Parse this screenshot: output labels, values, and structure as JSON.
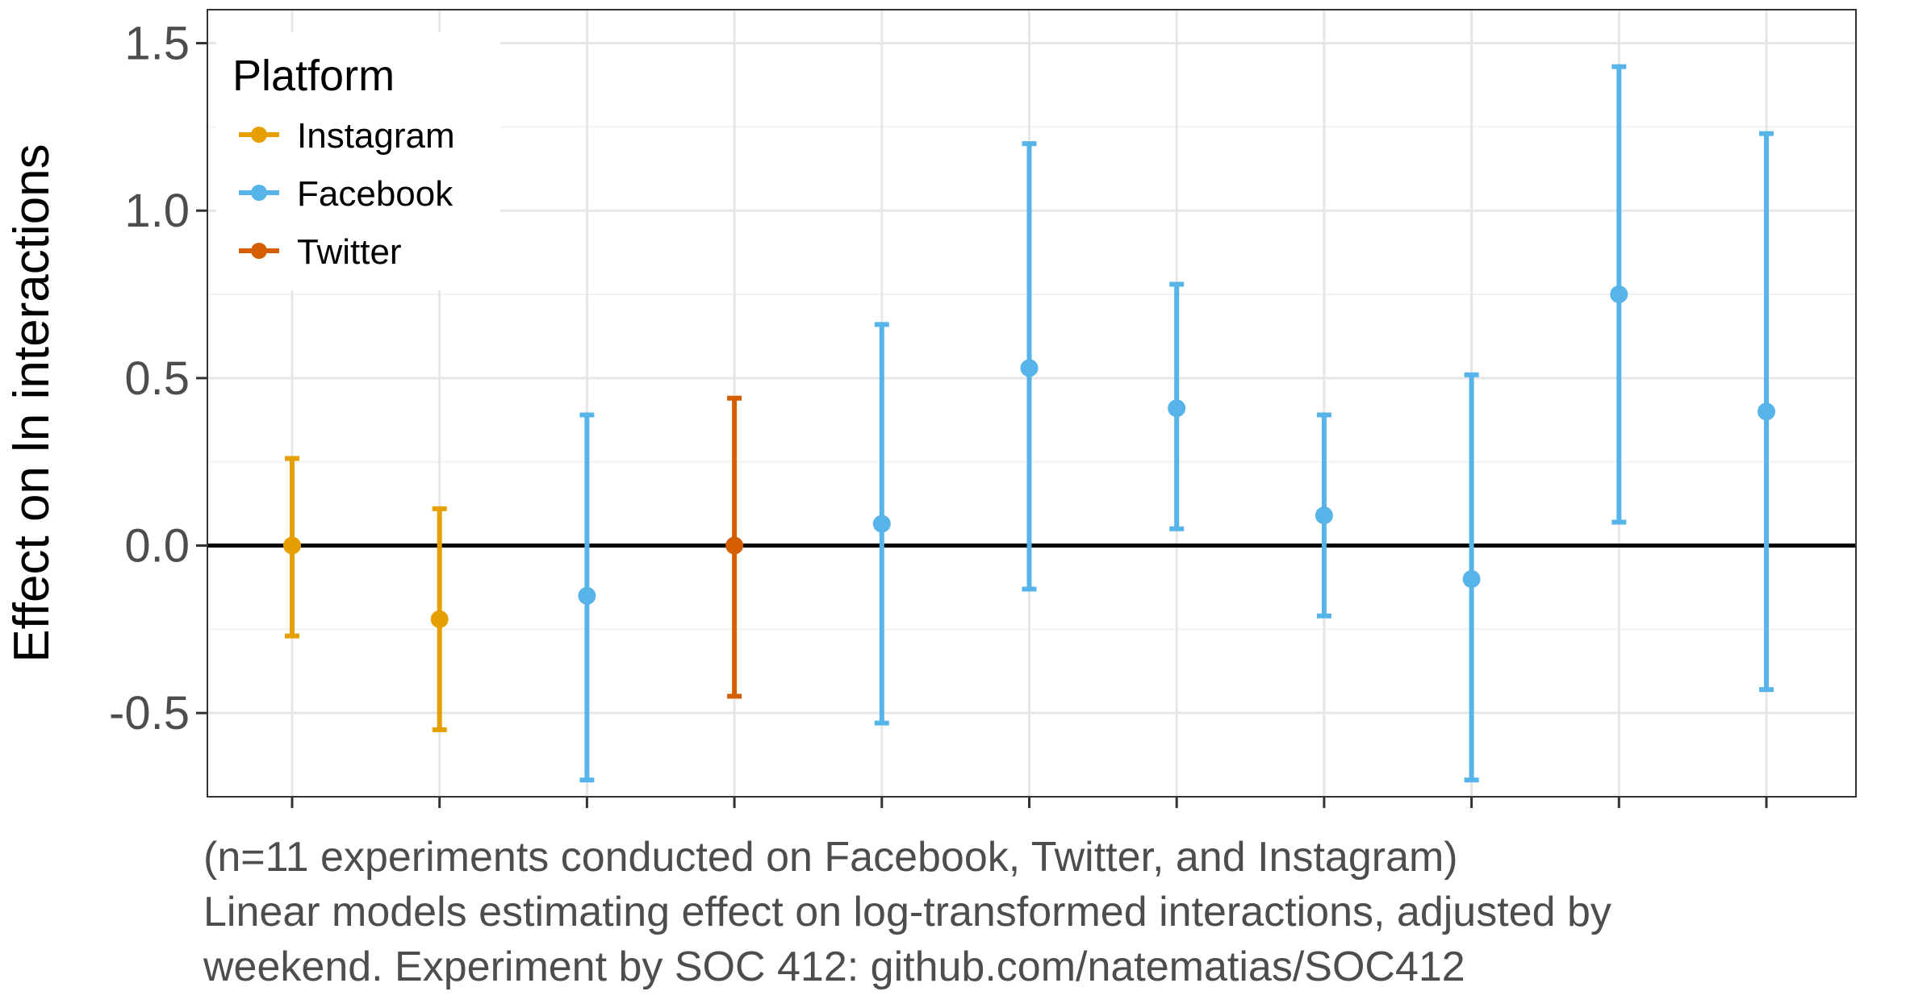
{
  "chart_data": {
    "type": "scatter",
    "subtype": "point-with-error-bars",
    "title": "",
    "xlabel": "",
    "ylabel": "Effect on ln interactions",
    "ylim": [
      -0.75,
      1.6
    ],
    "y_ticks": [
      1.5,
      1.0,
      0.5,
      0.0,
      -0.5
    ],
    "y_tick_labels": [
      "1.5",
      "1.0",
      "0.5",
      "0.0",
      "-0.5"
    ],
    "x_count": 11,
    "reference_line": 0.0,
    "grid": true,
    "legend": {
      "title": "Platform",
      "placement": "top-left",
      "entries": [
        {
          "label": "Instagram",
          "color": "#E69F00"
        },
        {
          "label": "Facebook",
          "color": "#56B4E9"
        },
        {
          "label": "Twitter",
          "color": "#D55E00"
        }
      ]
    },
    "points": [
      {
        "x": 1,
        "platform": "Instagram",
        "estimate": 0.0,
        "lower": -0.27,
        "upper": 0.26
      },
      {
        "x": 2,
        "platform": "Instagram",
        "estimate": -0.22,
        "lower": -0.55,
        "upper": 0.11
      },
      {
        "x": 3,
        "platform": "Facebook",
        "estimate": -0.15,
        "lower": -0.7,
        "upper": 0.39
      },
      {
        "x": 4,
        "platform": "Twitter",
        "estimate": 0.0,
        "lower": -0.45,
        "upper": 0.44
      },
      {
        "x": 5,
        "platform": "Facebook",
        "estimate": 0.065,
        "lower": -0.53,
        "upper": 0.66
      },
      {
        "x": 6,
        "platform": "Facebook",
        "estimate": 0.53,
        "lower": -0.13,
        "upper": 1.2
      },
      {
        "x": 7,
        "platform": "Facebook",
        "estimate": 0.41,
        "lower": 0.05,
        "upper": 0.78
      },
      {
        "x": 8,
        "platform": "Facebook",
        "estimate": 0.09,
        "lower": -0.21,
        "upper": 0.39
      },
      {
        "x": 9,
        "platform": "Facebook",
        "estimate": -0.1,
        "lower": -0.7,
        "upper": 0.51
      },
      {
        "x": 10,
        "platform": "Facebook",
        "estimate": 0.75,
        "lower": 0.07,
        "upper": 1.43
      },
      {
        "x": 11,
        "platform": "Facebook",
        "estimate": 0.4,
        "lower": -0.43,
        "upper": 1.23
      }
    ],
    "caption": [
      "(n=11 experiments conducted on Facebook, Twitter, and Instagram)",
      "Linear models estimating effect on log-transformed interactions, adjusted by",
      "weekend. Experiment by SOC 412: github.com/natematias/SOC412"
    ]
  }
}
